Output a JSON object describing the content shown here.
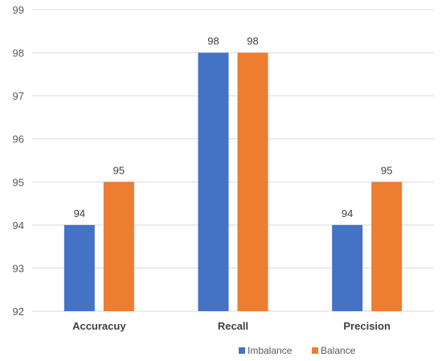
{
  "chart_data": {
    "type": "bar",
    "title": "",
    "xlabel": "",
    "ylabel": "",
    "categories": [
      "Accuracuy",
      "Recall",
      "Precision"
    ],
    "series": [
      {
        "name": "Imbalance",
        "values": [
          94,
          98,
          94
        ],
        "color": "#4472C4"
      },
      {
        "name": "Balance",
        "values": [
          95,
          98,
          95
        ],
        "color": "#ED7D31"
      }
    ],
    "ylim": [
      92,
      99
    ],
    "yticks": [
      92,
      93,
      94,
      95,
      96,
      97,
      98,
      99
    ],
    "grid": true,
    "data_labels": true,
    "legend_position": "bottom"
  }
}
